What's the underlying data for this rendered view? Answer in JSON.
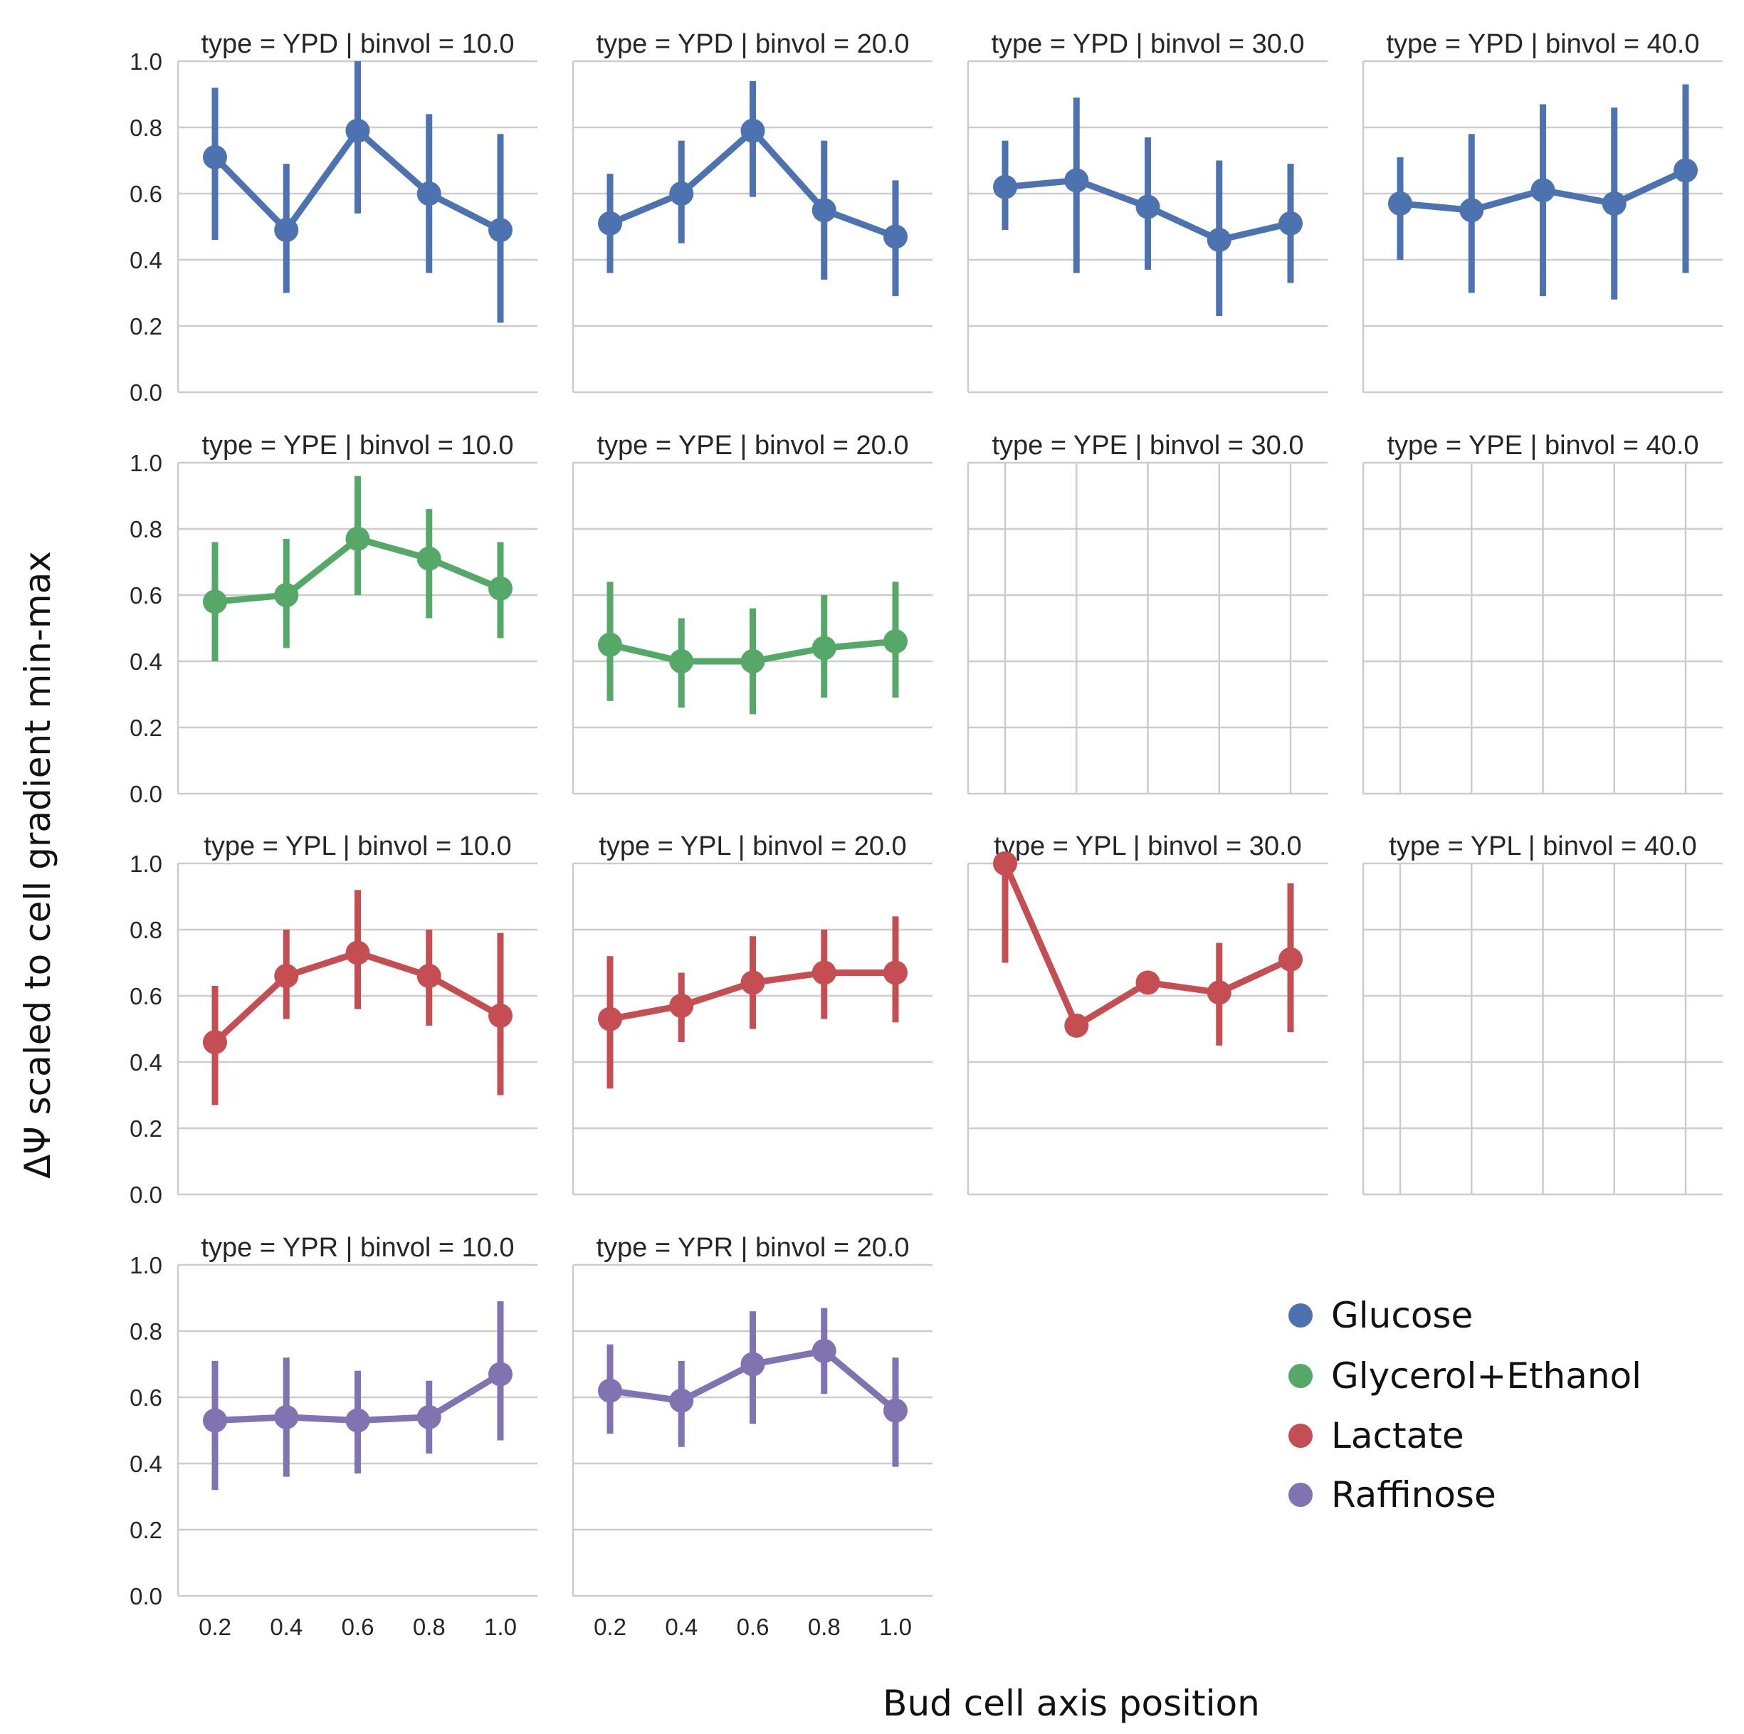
{
  "chart_data": {
    "type": "line",
    "xlabel": "Bud cell axis position",
    "ylabel": "ΔΨ scaled to cell gradient min-max",
    "x": [
      0.2,
      0.4,
      0.6,
      0.8,
      1.0
    ],
    "x_tick_labels": [
      "0.2",
      "0.4",
      "0.6",
      "0.8",
      "1.0"
    ],
    "y_tick_labels": [
      "0.0",
      "0.2",
      "0.4",
      "0.6",
      "0.8",
      "1.0"
    ],
    "ylim": [
      0.0,
      1.0
    ],
    "grid": true,
    "legend_position": "bottom-right",
    "legend": [
      {
        "label": "Glucose",
        "color": "#4C72B0"
      },
      {
        "label": "Glycerol+Ethanol",
        "color": "#55A868"
      },
      {
        "label": "Lactate",
        "color": "#C44E52"
      },
      {
        "label": "Raffinose",
        "color": "#8172B2"
      }
    ],
    "panels": [
      {
        "title": "type = YPD | binvol = 10.0",
        "row": 0,
        "col": 0,
        "color": "#4C72B0",
        "y": [
          0.71,
          0.49,
          0.79,
          0.6,
          0.49
        ],
        "lo": [
          0.46,
          0.3,
          0.54,
          0.36,
          0.21
        ],
        "hi": [
          0.92,
          0.69,
          1.0,
          0.84,
          0.78
        ]
      },
      {
        "title": "type = YPD | binvol = 20.0",
        "row": 0,
        "col": 1,
        "color": "#4C72B0",
        "y": [
          0.51,
          0.6,
          0.79,
          0.55,
          0.47
        ],
        "lo": [
          0.36,
          0.45,
          0.59,
          0.34,
          0.29
        ],
        "hi": [
          0.66,
          0.76,
          0.94,
          0.76,
          0.64
        ]
      },
      {
        "title": "type = YPD | binvol = 30.0",
        "row": 0,
        "col": 2,
        "color": "#4C72B0",
        "y": [
          0.62,
          0.64,
          0.56,
          0.46,
          0.51
        ],
        "lo": [
          0.49,
          0.36,
          0.37,
          0.23,
          0.33
        ],
        "hi": [
          0.76,
          0.89,
          0.77,
          0.7,
          0.69
        ]
      },
      {
        "title": "type = YPD | binvol = 40.0",
        "row": 0,
        "col": 3,
        "color": "#4C72B0",
        "y": [
          0.57,
          0.55,
          0.61,
          0.57,
          0.67
        ],
        "lo": [
          0.4,
          0.3,
          0.29,
          0.28,
          0.36
        ],
        "hi": [
          0.71,
          0.78,
          0.87,
          0.86,
          0.93
        ]
      },
      {
        "title": "type = YPE | binvol = 10.0",
        "row": 1,
        "col": 0,
        "color": "#55A868",
        "y": [
          0.58,
          0.6,
          0.77,
          0.71,
          0.62
        ],
        "lo": [
          0.4,
          0.44,
          0.6,
          0.53,
          0.47
        ],
        "hi": [
          0.76,
          0.77,
          0.96,
          0.86,
          0.76
        ]
      },
      {
        "title": "type = YPE | binvol = 20.0",
        "row": 1,
        "col": 1,
        "color": "#55A868",
        "y": [
          0.45,
          0.4,
          0.4,
          0.44,
          0.46
        ],
        "lo": [
          0.28,
          0.26,
          0.24,
          0.29,
          0.29
        ],
        "hi": [
          0.64,
          0.53,
          0.56,
          0.6,
          0.64
        ]
      },
      {
        "title": "type = YPE | binvol = 30.0",
        "row": 1,
        "col": 2,
        "color": "#55A868",
        "empty": true,
        "y": [],
        "lo": [],
        "hi": []
      },
      {
        "title": "type = YPE | binvol = 40.0",
        "row": 1,
        "col": 3,
        "color": "#55A868",
        "empty": true,
        "y": [],
        "lo": [],
        "hi": []
      },
      {
        "title": "type = YPL | binvol = 10.0",
        "row": 2,
        "col": 0,
        "color": "#C44E52",
        "y": [
          0.46,
          0.66,
          0.73,
          0.66,
          0.54
        ],
        "lo": [
          0.27,
          0.53,
          0.56,
          0.51,
          0.3
        ],
        "hi": [
          0.63,
          0.8,
          0.92,
          0.8,
          0.79
        ]
      },
      {
        "title": "type = YPL | binvol = 20.0",
        "row": 2,
        "col": 1,
        "color": "#C44E52",
        "y": [
          0.53,
          0.57,
          0.64,
          0.67,
          0.67
        ],
        "lo": [
          0.32,
          0.46,
          0.5,
          0.53,
          0.52
        ],
        "hi": [
          0.72,
          0.67,
          0.78,
          0.8,
          0.84
        ]
      },
      {
        "title": "type = YPL | binvol = 30.0",
        "row": 2,
        "col": 2,
        "color": "#C44E52",
        "y": [
          1.0,
          0.51,
          0.64,
          0.61,
          0.71
        ],
        "lo": [
          0.7,
          0.51,
          0.64,
          0.45,
          0.49
        ],
        "hi": [
          1.0,
          0.51,
          0.64,
          0.76,
          0.94
        ]
      },
      {
        "title": "type = YPL | binvol = 40.0",
        "row": 2,
        "col": 3,
        "color": "#C44E52",
        "empty": true,
        "y": [],
        "lo": [],
        "hi": []
      },
      {
        "title": "type = YPR | binvol = 10.0",
        "row": 3,
        "col": 0,
        "color": "#8172B2",
        "y": [
          0.53,
          0.54,
          0.53,
          0.54,
          0.67
        ],
        "lo": [
          0.32,
          0.36,
          0.37,
          0.43,
          0.47
        ],
        "hi": [
          0.71,
          0.72,
          0.68,
          0.65,
          0.89
        ]
      },
      {
        "title": "type = YPR | binvol = 20.0",
        "row": 3,
        "col": 1,
        "color": "#8172B2",
        "y": [
          0.62,
          0.59,
          0.7,
          0.74,
          0.56
        ],
        "lo": [
          0.49,
          0.45,
          0.52,
          0.61,
          0.39
        ],
        "hi": [
          0.76,
          0.71,
          0.86,
          0.87,
          0.72
        ]
      }
    ]
  }
}
